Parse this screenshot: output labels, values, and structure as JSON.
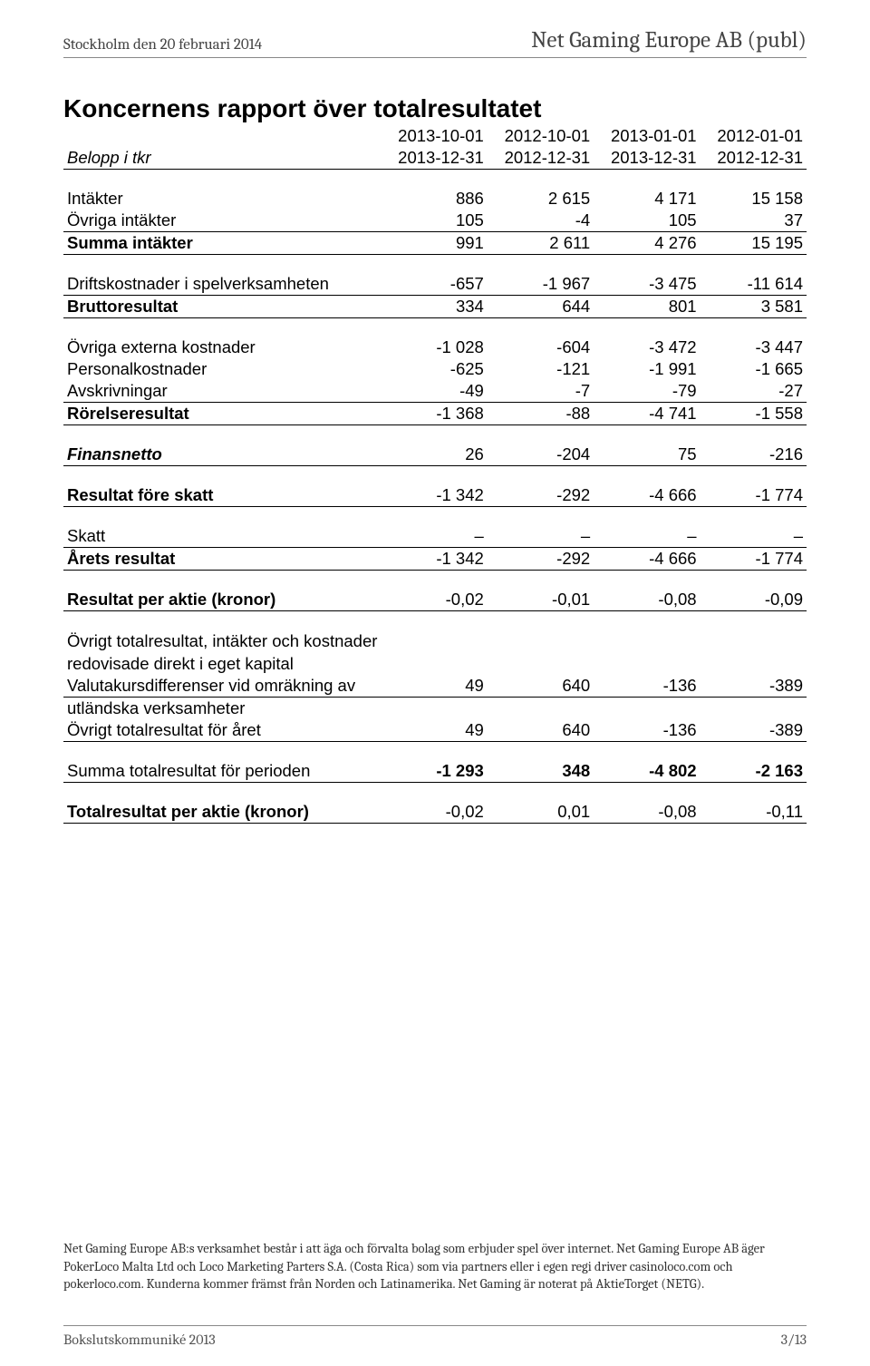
{
  "header": {
    "left": "Stockholm den 20 februari 2014",
    "right": "Net Gaming Europe AB (publ)"
  },
  "title": "Koncernens rapport över totalresultatet",
  "periods_row1": [
    "2013-10-01",
    "2012-10-01",
    "2013-01-01",
    "2012-01-01"
  ],
  "periods_row2_label": "Belopp i tkr",
  "periods_row2": [
    "2013-12-31",
    "2012-12-31",
    "2013-12-31",
    "2012-12-31"
  ],
  "rows": {
    "intakter": {
      "label": "Intäkter",
      "v": [
        "886",
        "2 615",
        "4 171",
        "15 158"
      ]
    },
    "ovriga_intakter": {
      "label": "Övriga intäkter",
      "v": [
        "105",
        "-4",
        "105",
        "37"
      ]
    },
    "summa_intakter": {
      "label": "Summa intäkter",
      "v": [
        "991",
        "2 611",
        "4 276",
        "15 195"
      ]
    },
    "driftskostnader": {
      "label": "Driftskostnader i spelverksamheten",
      "v": [
        "-657",
        "-1 967",
        "-3 475",
        "-11 614"
      ]
    },
    "bruttoresultat": {
      "label": "Bruttoresultat",
      "v": [
        "334",
        "644",
        "801",
        "3 581"
      ]
    },
    "ovriga_ext": {
      "label": "Övriga externa kostnader",
      "v": [
        "-1 028",
        "-604",
        "-3 472",
        "-3 447"
      ]
    },
    "personal": {
      "label": "Personalkostnader",
      "v": [
        "-625",
        "-121",
        "-1 991",
        "-1 665"
      ]
    },
    "avskrivningar": {
      "label": "Avskrivningar",
      "v": [
        "-49",
        "-7",
        "-79",
        "-27"
      ]
    },
    "rorelseresultat": {
      "label": "Rörelseresultat",
      "v": [
        "-1 368",
        "-88",
        "-4 741",
        "-1 558"
      ]
    },
    "finansnetto": {
      "label": "Finansnetto",
      "v": [
        "26",
        "-204",
        "75",
        "-216"
      ]
    },
    "resultat_fore_skatt": {
      "label": "Resultat före skatt",
      "v": [
        "-1 342",
        "-292",
        "-4 666",
        "-1 774"
      ]
    },
    "skatt": {
      "label": "Skatt",
      "v": [
        "–",
        "–",
        "–",
        "–"
      ]
    },
    "arets_resultat": {
      "label": "Årets resultat",
      "v": [
        "-1 342",
        "-292",
        "-4 666",
        "-1 774"
      ]
    },
    "resultat_per_aktie": {
      "label": "Resultat per aktie (kronor)",
      "v": [
        "-0,02",
        "-0,01",
        "-0,08",
        "-0,09"
      ]
    },
    "ovrigt_total_hdr1": {
      "label": "Övrigt totalresultat, intäkter och kostnader"
    },
    "ovrigt_total_hdr2": {
      "label": "redovisade direkt i eget kapital"
    },
    "valutakurs": {
      "label_a": "Valutakursdifferenser vid omräkning av",
      "label_b": "utländska verksamheter",
      "v": [
        "49",
        "640",
        "-136",
        "-389"
      ]
    },
    "ovrigt_total_aret": {
      "label": "Övrigt totalresultat för året",
      "v": [
        "49",
        "640",
        "-136",
        "-389"
      ]
    },
    "summa_total": {
      "label": "Summa totalresultat för perioden",
      "v": [
        "-1 293",
        "348",
        "-4 802",
        "-2 163"
      ]
    },
    "total_per_aktie": {
      "label": "Totalresultat per aktie (kronor)",
      "v": [
        "-0,02",
        "0,01",
        "-0,08",
        "-0,11"
      ]
    }
  },
  "footer_text": "Net Gaming Europe AB:s verksamhet består i att äga och förvalta bolag som erbjuder spel över internet. Net Gaming Europe AB äger PokerLoco Malta Ltd och Loco Marketing Parters S.A. (Costa Rica) som via partners eller i egen regi driver casinoloco.com och pokerloco.com. Kunderna kommer främst från Norden och Latinamerika. Net Gaming är noterat på AktieTorget (NETG).",
  "footer_bar": {
    "left": "Bokslutskommuniké 2013",
    "right": "3/13"
  }
}
